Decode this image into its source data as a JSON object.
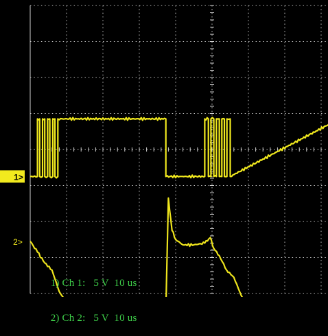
{
  "chart_data": {
    "type": "line",
    "title": "",
    "xlabel": "",
    "ylabel": "",
    "grid": true,
    "grid_divisions": {
      "x": 10,
      "y": 8
    },
    "timebase_us_per_div": 10,
    "x_range_us": [
      0,
      100
    ],
    "channel_colors": {
      "ch1": "#f2ea1e",
      "ch2": "#eee41d"
    },
    "series": [
      {
        "marker": "1",
        "volts_per_div": 5,
        "reference_div": -0.75,
        "x": [
          0,
          2,
          2,
          2.6,
          2.6,
          3.4,
          3.4,
          4,
          4,
          4.8,
          4.8,
          5.4,
          5.4,
          6.2,
          6.2,
          6.8,
          6.8,
          7.6,
          7.6,
          37.3,
          37.3,
          48,
          48,
          49,
          49,
          49.7,
          49.7,
          50.5,
          50.5,
          51.2,
          51.2,
          52,
          52,
          52.7,
          52.7,
          53.4,
          53.4,
          54.1,
          54.1,
          55,
          55,
          85,
          85,
          100
        ],
        "y_div": [
          0,
          0,
          1.6,
          1.6,
          0,
          0,
          1.6,
          1.6,
          0,
          0,
          1.6,
          1.6,
          0,
          0,
          1.6,
          1.6,
          0,
          0,
          1.6,
          1.6,
          0,
          0,
          1.6,
          1.6,
          0,
          0,
          1.6,
          1.6,
          0,
          0,
          1.6,
          1.6,
          0,
          0,
          1.6,
          1.6,
          0,
          0,
          1.6,
          1.6,
          0,
          1.6,
          0,
          0
        ]
      },
      {
        "marker": "2",
        "volts_per_div": 5,
        "reference_div": -2.55,
        "x": [
          0,
          2,
          4,
          6,
          8,
          10,
          12,
          14,
          16,
          18,
          20,
          25,
          30,
          35,
          36.8,
          37.4,
          38,
          39,
          40,
          42,
          45,
          48,
          49.5,
          50.5,
          52,
          54,
          56,
          58,
          60,
          62,
          64,
          66,
          68,
          70,
          75,
          80,
          85,
          86.8,
          87.4,
          88,
          89,
          90,
          92,
          95,
          100
        ],
        "y_div": [
          0,
          -0.3,
          -0.6,
          -0.8,
          -1.4,
          -1.7,
          -1.9,
          -2.3,
          -2.6,
          -2.9,
          -3.05,
          -3.05,
          -3.05,
          -3.05,
          -3.05,
          -1.5,
          1.2,
          0.3,
          0.05,
          -0.1,
          -0.1,
          -0.05,
          0.1,
          -0.2,
          -0.4,
          -0.8,
          -1.0,
          -1.5,
          -1.8,
          -2.1,
          -2.5,
          -2.7,
          -2.9,
          -3.05,
          -3.05,
          -3.05,
          -3.05,
          -3.05,
          -1.5,
          1.2,
          0.3,
          0.05,
          -0.1,
          -0.1,
          -0.05
        ]
      }
    ],
    "legend": [
      {
        "label": "1) Ch 1:",
        "scale": "5 V",
        "time": "10 us"
      },
      {
        "label": "2) Ch 2:",
        "scale": "5 V",
        "time": "10 us"
      }
    ]
  }
}
